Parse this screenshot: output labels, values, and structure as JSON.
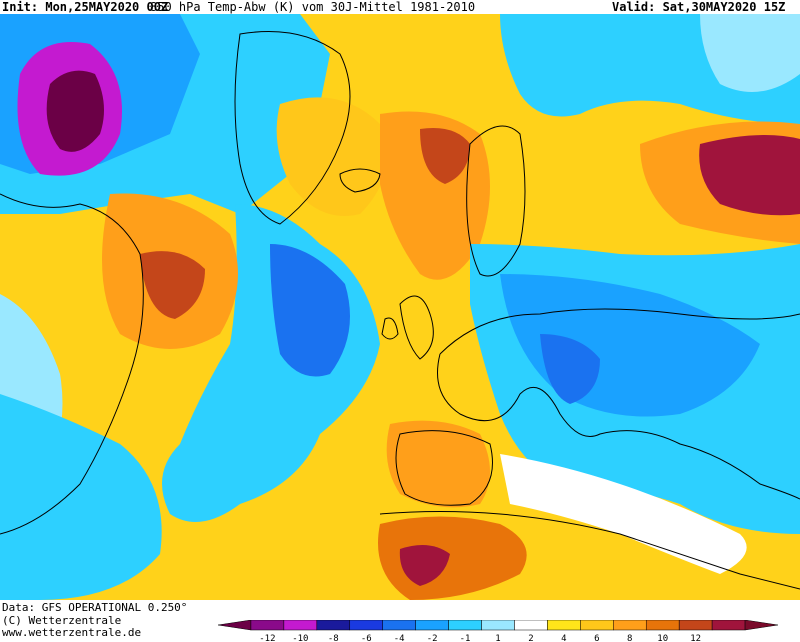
{
  "header": {
    "init": "Init: Mon,25MAY2020 00Z",
    "title": "850 hPa Temp-Abw (K) vom 30J-Mittel 1981-2010",
    "valid": "Valid: Sat,30MAY2020 15Z"
  },
  "footer": {
    "data_source": "Data: GFS OPERATIONAL 0.250°",
    "copyright": "(C) Wetterzentrale",
    "website": "www.wetterzentrale.de"
  },
  "legend": {
    "colors": [
      "#6b0046",
      "#8a0a8a",
      "#c41ad0",
      "#1a1a9c",
      "#1a3ae0",
      "#1a72f0",
      "#1aa2ff",
      "#2dd0ff",
      "#9ae8ff",
      "#ffffff",
      "#ffe51a",
      "#ffc71a",
      "#ff9f1a",
      "#e8740a",
      "#c4461a",
      "#a0143c",
      "#7a0a2a"
    ],
    "tick_labels": [
      "-12",
      "-10",
      "-8",
      "-6",
      "-4",
      "-2",
      "-1",
      "1",
      "2",
      "4",
      "6",
      "8",
      "10",
      "12"
    ]
  },
  "map": {
    "variable": "850 hPa temperature anomaly",
    "unit": "K",
    "baseline": "1981-2010"
  }
}
